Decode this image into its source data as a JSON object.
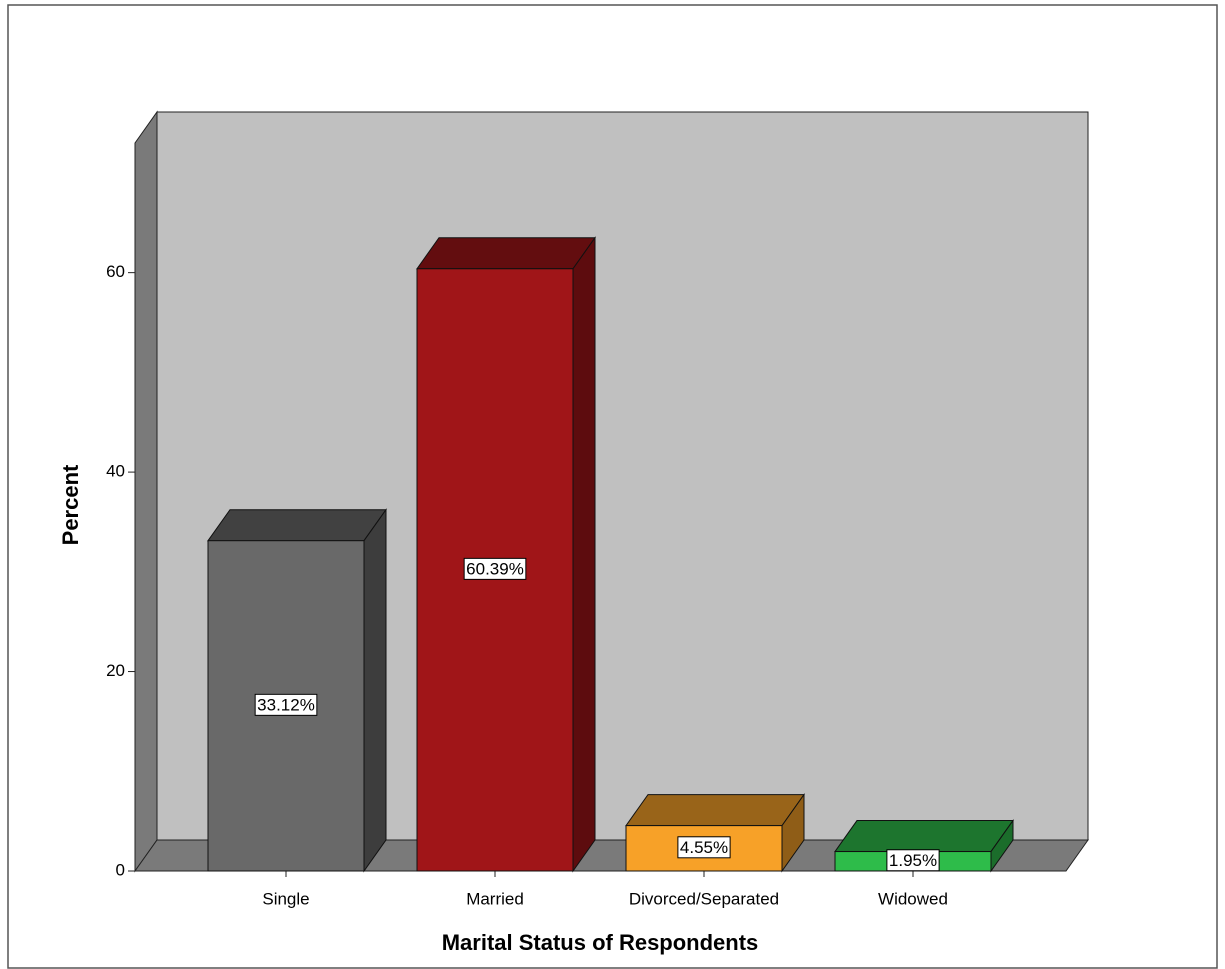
{
  "chart_data": {
    "type": "bar3d",
    "xlabel": "Marital Status of Respondents",
    "ylabel": "Percent",
    "categories": [
      "Single",
      "Married",
      "Divorced/Separated",
      "Widowed"
    ],
    "values": [
      33.12,
      60.39,
      4.55,
      1.95
    ],
    "value_labels": [
      "33.12%",
      "60.39%",
      "4.55%",
      "1.95%"
    ],
    "colors": [
      "#696969",
      "#a01518",
      "#f7a128",
      "#2ebc4a"
    ],
    "ylim": [
      0,
      73
    ],
    "yticks": [
      0,
      20,
      40,
      60
    ]
  }
}
